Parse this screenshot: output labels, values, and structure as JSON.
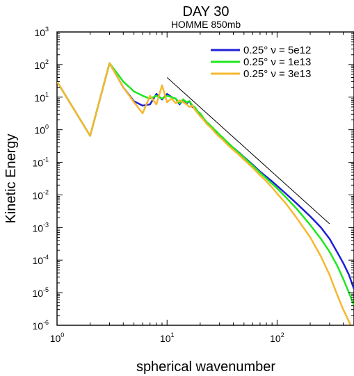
{
  "chart_data": {
    "type": "line",
    "title": "DAY 30",
    "subtitle": "HOMME  850mb",
    "xlabel": "spherical wavenumber",
    "ylabel": "Kinetic Energy",
    "xscale": "log",
    "yscale": "log",
    "xlim": [
      1,
      500
    ],
    "ylim": [
      1e-06,
      1000
    ],
    "x_ticks": [
      {
        "value": 1,
        "base": "10",
        "exp": "0"
      },
      {
        "value": 10,
        "base": "10",
        "exp": "1"
      },
      {
        "value": 100,
        "base": "10",
        "exp": "2"
      }
    ],
    "y_ticks": [
      {
        "value": 1e-06,
        "base": "10",
        "exp": "-6"
      },
      {
        "value": 1e-05,
        "base": "10",
        "exp": "-5"
      },
      {
        "value": 0.0001,
        "base": "10",
        "exp": "-4"
      },
      {
        "value": 0.001,
        "base": "10",
        "exp": "-3"
      },
      {
        "value": 0.01,
        "base": "10",
        "exp": "-2"
      },
      {
        "value": 0.1,
        "base": "10",
        "exp": "-1"
      },
      {
        "value": 1,
        "base": "10",
        "exp": "0"
      },
      {
        "value": 10,
        "base": "10",
        "exp": "1"
      },
      {
        "value": 100,
        "base": "10",
        "exp": "2"
      },
      {
        "value": 1000,
        "base": "10",
        "exp": "3"
      }
    ],
    "grid": false,
    "legend_position": "top-right",
    "series": [
      {
        "name": "0.25°  ν = 5e12",
        "color": "#1f1fd6",
        "x": [
          1,
          2,
          3,
          4,
          5,
          6,
          7,
          8,
          9,
          10,
          11,
          12,
          13,
          14,
          15,
          16,
          17,
          18,
          19,
          20,
          21,
          22,
          23,
          24,
          25,
          26,
          27,
          28,
          30,
          32,
          34,
          36,
          38,
          40,
          45,
          50,
          55,
          60,
          70,
          80,
          90,
          100,
          120,
          150,
          200,
          250,
          300,
          350,
          400,
          450,
          500
        ],
        "y": [
          30,
          0.65,
          110,
          20,
          7.5,
          5.5,
          6,
          12.5,
          8.5,
          12.5,
          10,
          9,
          6,
          8.5,
          6.5,
          7.5,
          5,
          4.5,
          3.3,
          3,
          2.3,
          1.9,
          1.6,
          1.45,
          1.25,
          1.1,
          0.95,
          0.85,
          0.65,
          0.55,
          0.45,
          0.38,
          0.32,
          0.28,
          0.2,
          0.145,
          0.11,
          0.085,
          0.052,
          0.036,
          0.026,
          0.019,
          0.011,
          0.0055,
          0.0022,
          0.001,
          0.00045,
          0.00018,
          8e-05,
          3.5e-05,
          1.3e-05
        ]
      },
      {
        "name": "0.25°  ν = 1e13",
        "color": "#1fe81f",
        "x": [
          1,
          2,
          3,
          4,
          5,
          6,
          7,
          8,
          9,
          10,
          11,
          12,
          13,
          14,
          15,
          16,
          17,
          18,
          19,
          20,
          21,
          22,
          23,
          24,
          25,
          26,
          27,
          28,
          30,
          32,
          34,
          36,
          38,
          40,
          45,
          50,
          55,
          60,
          70,
          80,
          90,
          100,
          120,
          150,
          200,
          250,
          300,
          350,
          400,
          450,
          500
        ],
        "y": [
          30,
          0.65,
          110,
          30,
          15,
          11,
          9,
          11,
          9,
          11,
          10,
          9,
          6.5,
          8.5,
          7,
          7.5,
          5.5,
          4.8,
          3.6,
          3.2,
          2.5,
          2,
          1.7,
          1.5,
          1.3,
          1.15,
          1,
          0.9,
          0.7,
          0.58,
          0.47,
          0.39,
          0.33,
          0.28,
          0.195,
          0.14,
          0.105,
          0.08,
          0.048,
          0.032,
          0.022,
          0.016,
          0.0085,
          0.0038,
          0.0012,
          0.00045,
          0.00018,
          7e-05,
          2.6e-05,
          1e-05,
          4e-06
        ]
      },
      {
        "name": "0.25°  ν = 3e13",
        "color": "#f5b82e",
        "x": [
          1,
          2,
          3,
          4,
          5,
          6,
          7,
          8,
          9,
          10,
          11,
          12,
          13,
          14,
          15,
          16,
          17,
          18,
          19,
          20,
          21,
          22,
          23,
          24,
          25,
          26,
          27,
          28,
          30,
          32,
          34,
          36,
          38,
          40,
          45,
          50,
          55,
          60,
          70,
          80,
          90,
          100,
          120,
          150,
          200,
          250,
          300,
          350,
          400,
          450,
          500
        ],
        "y": [
          30,
          0.65,
          110,
          20,
          7,
          3.2,
          11,
          6,
          23,
          7,
          9,
          6.5,
          8,
          7,
          6,
          5,
          5.5,
          4,
          3.2,
          2.6,
          2.2,
          1.8,
          1.5,
          1.3,
          1.15,
          1,
          0.85,
          0.75,
          0.6,
          0.5,
          0.4,
          0.33,
          0.28,
          0.24,
          0.17,
          0.12,
          0.09,
          0.068,
          0.04,
          0.026,
          0.017,
          0.011,
          0.0055,
          0.002,
          0.0005,
          0.00013,
          3.5e-05,
          9e-06,
          3e-06,
          1.3e-06,
          6e-07
        ]
      }
    ],
    "reference_line": {
      "x": [
        10,
        300
      ],
      "y": [
        40,
        0.0013
      ],
      "color": "#000000"
    }
  }
}
